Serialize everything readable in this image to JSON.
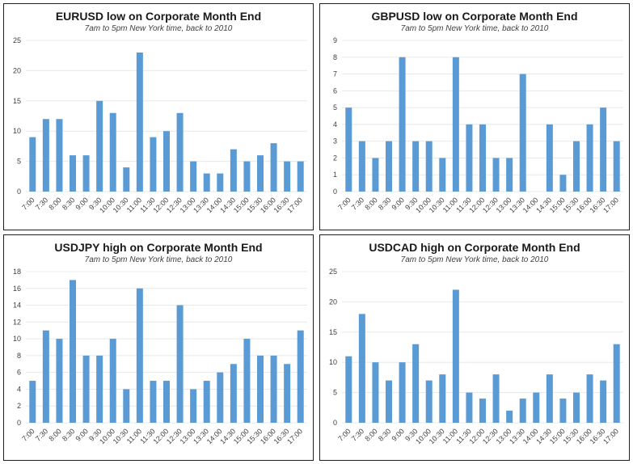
{
  "page": {
    "background": "#ffffff",
    "panel_border_color": "#1f1f1f",
    "grid_color": "#e8e8e8",
    "axis_text_color": "#404040",
    "accent_color": "#5B9BD5"
  },
  "chart_data": [
    {
      "type": "bar",
      "title": "EURUSD low on Corporate Month End",
      "subtitle": "7am to 5pm New York time, back to 2010",
      "categories": [
        "7:00",
        "7:30",
        "8:00",
        "8:30",
        "9:00",
        "9:30",
        "10:00",
        "10:30",
        "11:00",
        "11:30",
        "12:00",
        "12:30",
        "13:00",
        "13:30",
        "14:00",
        "14:30",
        "15:00",
        "15:30",
        "16:00",
        "16:30",
        "17:00"
      ],
      "values": [
        9,
        12,
        12,
        6,
        6,
        15,
        13,
        4,
        23,
        9,
        10,
        13,
        5,
        3,
        3,
        7,
        5,
        6,
        8,
        5,
        5
      ],
      "xlabel": "",
      "ylabel": "",
      "ylim": [
        0,
        25
      ],
      "ytick_step": 5,
      "grid": true,
      "legend": "none",
      "bar_color": "#5B9BD5"
    },
    {
      "type": "bar",
      "title": "GBPUSD low on Corporate Month End",
      "subtitle": "7am to 5pm New York time, back to 2010",
      "categories": [
        "7:00",
        "7:30",
        "8:00",
        "8:30",
        "9:00",
        "9:30",
        "10:00",
        "10:30",
        "11:00",
        "11:30",
        "12:00",
        "12:30",
        "13:00",
        "13:30",
        "14:00",
        "14:30",
        "15:00",
        "15:30",
        "16:00",
        "16:30",
        "17:00"
      ],
      "values": [
        5,
        3,
        2,
        3,
        8,
        3,
        3,
        2,
        8,
        4,
        4,
        2,
        2,
        7,
        0,
        4,
        1,
        3,
        4,
        5,
        3
      ],
      "xlabel": "",
      "ylabel": "",
      "ylim": [
        0,
        9
      ],
      "ytick_step": 1,
      "grid": true,
      "legend": "none",
      "bar_color": "#5B9BD5"
    },
    {
      "type": "bar",
      "title": "USDJPY high on Corporate Month End",
      "subtitle": "7am to 5pm New York time, back to 2010",
      "categories": [
        "7:00",
        "7:30",
        "8:00",
        "8:30",
        "9:00",
        "9:30",
        "10:00",
        "10:30",
        "11:00",
        "11:30",
        "12:00",
        "12:30",
        "13:00",
        "13:30",
        "14:00",
        "14:30",
        "15:00",
        "15:30",
        "16:00",
        "16:30",
        "17:00"
      ],
      "values": [
        5,
        11,
        10,
        17,
        8,
        8,
        10,
        4,
        16,
        5,
        5,
        14,
        4,
        5,
        6,
        7,
        10,
        8,
        8,
        7,
        11
      ],
      "xlabel": "",
      "ylabel": "",
      "ylim": [
        0,
        18
      ],
      "ytick_step": 2,
      "grid": true,
      "legend": "none",
      "bar_color": "#5B9BD5"
    },
    {
      "type": "bar",
      "title": "USDCAD high on Corporate Month End",
      "subtitle": "7am to 5pm New York time, back to 2010",
      "categories": [
        "7:00",
        "7:30",
        "8:00",
        "8:30",
        "9:00",
        "9:30",
        "10:00",
        "10:30",
        "11:00",
        "11:30",
        "12:00",
        "12:30",
        "13:00",
        "13:30",
        "14:00",
        "14:30",
        "15:00",
        "15:30",
        "16:00",
        "16:30",
        "17:00"
      ],
      "values": [
        11,
        18,
        10,
        7,
        10,
        13,
        7,
        8,
        22,
        5,
        4,
        8,
        2,
        4,
        5,
        8,
        4,
        5,
        8,
        7,
        13
      ],
      "xlabel": "",
      "ylabel": "",
      "ylim": [
        0,
        25
      ],
      "ytick_step": 5,
      "grid": true,
      "legend": "none",
      "bar_color": "#5B9BD5"
    }
  ]
}
